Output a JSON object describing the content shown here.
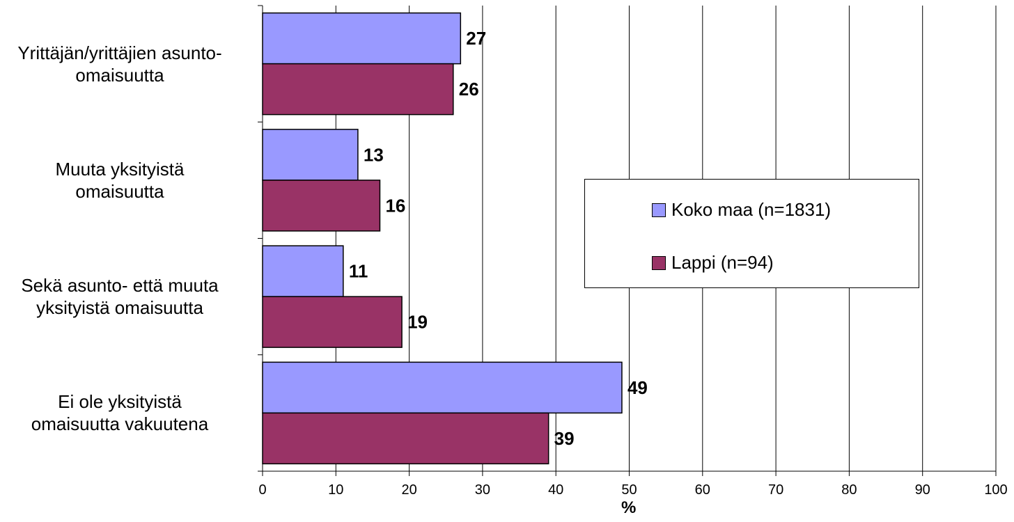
{
  "chart_data": {
    "type": "bar",
    "orientation": "horizontal",
    "categories": [
      "Yrittäjän/yrittäjien asunto-\nomaisuutta",
      "Muuta yksityistä\nomaisuutta",
      "Sekä asunto- että muuta\nyksityistä omaisuutta",
      "Ei ole yksityistä\nomaisuutta vakuutena"
    ],
    "series": [
      {
        "name": "Koko maa (n=1831)",
        "color": "#9999ff",
        "values": [
          27,
          13,
          11,
          49
        ]
      },
      {
        "name": "Lappi (n=94)",
        "color": "#993366",
        "values": [
          26,
          16,
          19,
          39
        ]
      }
    ],
    "xlabel": "%",
    "xlim": [
      0,
      100
    ],
    "xticks": [
      0,
      10,
      20,
      30,
      40,
      50,
      60,
      70,
      80,
      90,
      100
    ],
    "grid": "vertical",
    "legend_position": "center-right"
  }
}
